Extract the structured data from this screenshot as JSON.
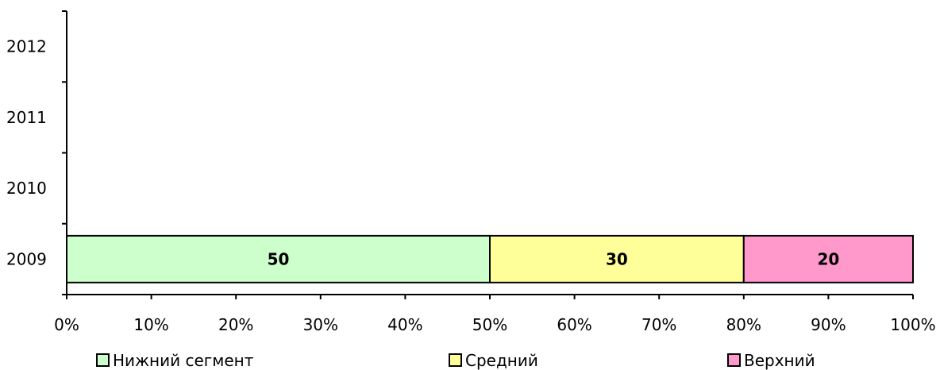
{
  "chart_data": {
    "type": "bar",
    "orientation": "horizontal",
    "stacking": "percent",
    "categories": [
      "2009",
      "2010",
      "2011",
      "2012"
    ],
    "series": [
      {
        "name": "Нижний сегмент",
        "values": [
          50,
          null,
          null,
          null
        ],
        "color": "#ccffcc"
      },
      {
        "name": "Средний",
        "values": [
          30,
          null,
          null,
          null
        ],
        "color": "#ffff99"
      },
      {
        "name": "Верхний",
        "values": [
          20,
          null,
          null,
          null
        ],
        "color": "#ff99cc"
      }
    ],
    "xlim": [
      0,
      100
    ],
    "x_tick_labels": [
      "0%",
      "10%",
      "20%",
      "30%",
      "40%",
      "50%",
      "60%",
      "70%",
      "80%",
      "90%",
      "100%"
    ],
    "data_labels": [
      "50",
      "30",
      "20"
    ],
    "grid": false,
    "legend_position": "bottom"
  }
}
